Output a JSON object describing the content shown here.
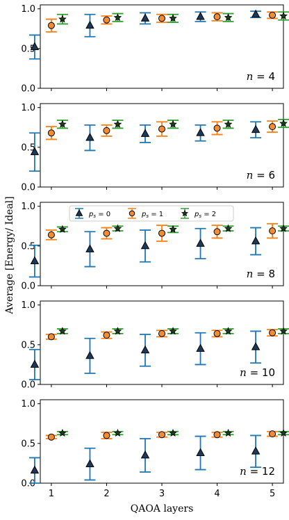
{
  "chart_data": {
    "type": "scatter",
    "xlabel": "QAOA layers",
    "ylabel": "Average [Energy/ Ideal]",
    "x": [
      1,
      2,
      3,
      4,
      5
    ],
    "xlim": [
      0.8,
      5.2
    ],
    "ylim": [
      0,
      1.05
    ],
    "yticks": [
      "0.0",
      "0.5",
      "1.0"
    ],
    "legend": {
      "placement": "top-center of third panel",
      "entries": [
        {
          "label": "p_s = 0",
          "label_main": "p",
          "label_sub": "s",
          "label_rest": " = 0",
          "marker": "triangle",
          "color": "#1f77b4",
          "face": "#1b3a5a"
        },
        {
          "label": "p_s = 1",
          "label_main": "p",
          "label_sub": "s",
          "label_rest": " = 1",
          "marker": "circle",
          "color": "#ff7f0e",
          "face": "#f08c34"
        },
        {
          "label": "p_s = 2",
          "label_main": "p",
          "label_sub": "s",
          "label_rest": " = 2",
          "marker": "star",
          "color": "#2ca02c",
          "face": "#1a3d1a"
        }
      ]
    },
    "panels": [
      {
        "annotation": "n = 4",
        "ann_var": "n",
        "ann_val": "= 4",
        "series": [
          {
            "values": [
              0.52,
              0.79,
              0.88,
              0.9,
              0.93
            ],
            "err": [
              0.15,
              0.14,
              0.07,
              0.06,
              0.04
            ]
          },
          {
            "values": [
              0.79,
              0.86,
              0.88,
              0.9,
              0.92
            ],
            "err": [
              0.08,
              0.05,
              0.05,
              0.05,
              0.04
            ]
          },
          {
            "values": [
              0.87,
              0.89,
              0.88,
              0.89,
              0.91
            ],
            "err": [
              0.06,
              0.05,
              0.05,
              0.05,
              0.05
            ]
          }
        ]
      },
      {
        "annotation": "n = 6",
        "ann_var": "n",
        "ann_val": "= 6",
        "series": [
          {
            "values": [
              0.44,
              0.62,
              0.67,
              0.68,
              0.72
            ],
            "err": [
              0.24,
              0.16,
              0.11,
              0.1,
              0.1
            ]
          },
          {
            "values": [
              0.68,
              0.71,
              0.73,
              0.74,
              0.76
            ],
            "err": [
              0.08,
              0.07,
              0.09,
              0.08,
              0.07
            ]
          },
          {
            "values": [
              0.79,
              0.79,
              0.79,
              0.79,
              0.8
            ],
            "err": [
              0.05,
              0.05,
              0.05,
              0.05,
              0.05
            ]
          }
        ]
      },
      {
        "annotation": "n = 8",
        "ann_var": "n",
        "ann_val": "= 8",
        "series": [
          {
            "values": [
              0.31,
              0.46,
              0.5,
              0.53,
              0.56
            ],
            "err": [
              0.2,
              0.22,
              0.2,
              0.19,
              0.17
            ]
          },
          {
            "values": [
              0.64,
              0.66,
              0.66,
              0.68,
              0.69
            ],
            "err": [
              0.06,
              0.07,
              0.1,
              0.08,
              0.09
            ]
          },
          {
            "values": [
              0.71,
              0.72,
              0.71,
              0.72,
              0.72
            ],
            "err": [
              0.03,
              0.03,
              0.04,
              0.03,
              0.03
            ]
          }
        ]
      },
      {
        "annotation": "n = 10",
        "ann_var": "n",
        "ann_val": "= 10",
        "series": [
          {
            "values": [
              0.25,
              0.36,
              0.43,
              0.45,
              0.47
            ],
            "err": [
              0.19,
              0.22,
              0.2,
              0.2,
              0.2
            ]
          },
          {
            "values": [
              0.6,
              0.62,
              0.64,
              0.64,
              0.65
            ],
            "err": [
              0.03,
              0.04,
              0.04,
              0.04,
              0.04
            ]
          },
          {
            "values": [
              0.67,
              0.67,
              0.67,
              0.67,
              0.67
            ],
            "err": [
              0.03,
              0.03,
              0.03,
              0.03,
              0.03
            ]
          }
        ]
      },
      {
        "annotation": "n = 12",
        "ann_var": "n",
        "ann_val": "= 12",
        "series": [
          {
            "values": [
              0.16,
              0.24,
              0.35,
              0.38,
              0.4
            ],
            "err": [
              0.16,
              0.2,
              0.21,
              0.21,
              0.2
            ]
          },
          {
            "values": [
              0.58,
              0.6,
              0.61,
              0.61,
              0.62
            ],
            "err": [
              0.02,
              0.04,
              0.03,
              0.03,
              0.03
            ]
          },
          {
            "values": [
              0.63,
              0.63,
              0.63,
              0.63,
              0.63
            ],
            "err": [
              0.02,
              0.02,
              0.02,
              0.02,
              0.02
            ]
          }
        ]
      }
    ]
  }
}
